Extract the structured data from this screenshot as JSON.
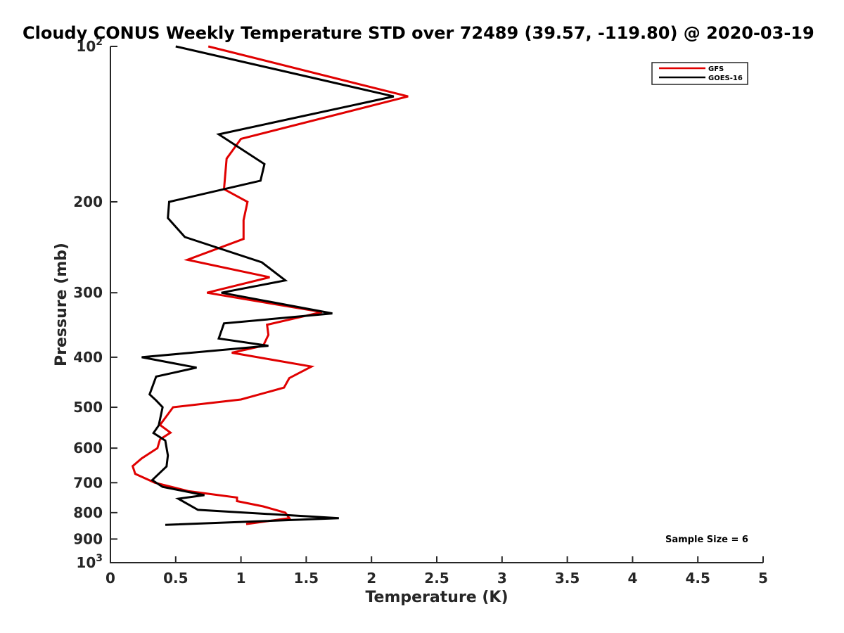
{
  "chart_data": {
    "type": "line",
    "title": "Cloudy CONUS Weekly Temperature STD over 72489 (39.57, -119.80) @ 2020-03-19",
    "xlabel": "Temperature (K)",
    "ylabel": "Pressure (mb)",
    "xlim": [
      0,
      5
    ],
    "ylim": [
      1000,
      100
    ],
    "yscale": "log",
    "y_reversed": true,
    "grid": false,
    "legend_position": "top-right",
    "x_ticks": [
      "0",
      "0.5",
      "1",
      "1.5",
      "2",
      "2.5",
      "3",
      "3.5",
      "4",
      "4.5",
      "5"
    ],
    "x_tick_values": [
      0,
      0.5,
      1,
      1.5,
      2,
      2.5,
      3,
      3.5,
      4,
      4.5,
      5
    ],
    "y_tick_values": [
      100,
      200,
      300,
      400,
      500,
      600,
      700,
      800,
      900,
      1000
    ],
    "y_ticks": [
      {
        "base": "10",
        "exp": "2"
      },
      {
        "text": "200"
      },
      {
        "text": "300"
      },
      {
        "text": "400"
      },
      {
        "text": "500"
      },
      {
        "text": "600"
      },
      {
        "text": "700"
      },
      {
        "text": "800"
      },
      {
        "text": "900"
      },
      {
        "base": "10",
        "exp": "3"
      }
    ],
    "annotation": "Sample Size = 6",
    "series": [
      {
        "name": "GFS",
        "color": "#e00000",
        "points": [
          [
            0.75,
            100
          ],
          [
            2.28,
            125
          ],
          [
            1.0,
            151
          ],
          [
            0.89,
            165
          ],
          [
            0.87,
            189
          ],
          [
            1.05,
            200
          ],
          [
            1.02,
            217
          ],
          [
            1.02,
            236
          ],
          [
            0.59,
            259
          ],
          [
            1.22,
            280
          ],
          [
            0.74,
            300
          ],
          [
            1.62,
            327
          ],
          [
            1.2,
            346
          ],
          [
            1.21,
            362
          ],
          [
            1.17,
            380
          ],
          [
            0.93,
            392
          ],
          [
            1.54,
            417
          ],
          [
            1.37,
            439
          ],
          [
            1.33,
            458
          ],
          [
            1.0,
            483
          ],
          [
            0.48,
            500
          ],
          [
            0.38,
            541
          ],
          [
            0.46,
            560
          ],
          [
            0.38,
            577
          ],
          [
            0.36,
            600
          ],
          [
            0.24,
            628
          ],
          [
            0.17,
            650
          ],
          [
            0.19,
            673
          ],
          [
            0.34,
            700
          ],
          [
            0.6,
            727
          ],
          [
            0.97,
            748
          ],
          [
            0.97,
            760
          ],
          [
            1.17,
            778
          ],
          [
            1.34,
            800
          ],
          [
            1.37,
            820
          ],
          [
            1.04,
            842
          ]
        ]
      },
      {
        "name": "GOES-16",
        "color": "#000000",
        "points": [
          [
            0.5,
            100
          ],
          [
            2.17,
            125
          ],
          [
            0.83,
            148
          ],
          [
            1.18,
            169
          ],
          [
            1.15,
            182
          ],
          [
            0.45,
            200
          ],
          [
            0.44,
            215
          ],
          [
            0.57,
            234
          ],
          [
            1.16,
            262
          ],
          [
            1.34,
            284
          ],
          [
            0.85,
            300
          ],
          [
            1.7,
            329
          ],
          [
            0.87,
            344
          ],
          [
            0.83,
            368
          ],
          [
            1.21,
            380
          ],
          [
            0.24,
            400
          ],
          [
            0.66,
            419
          ],
          [
            0.35,
            436
          ],
          [
            0.3,
            472
          ],
          [
            0.35,
            485
          ],
          [
            0.4,
            500
          ],
          [
            0.37,
            542
          ],
          [
            0.33,
            561
          ],
          [
            0.42,
            580
          ],
          [
            0.44,
            620
          ],
          [
            0.43,
            651
          ],
          [
            0.32,
            692
          ],
          [
            0.4,
            713
          ],
          [
            0.72,
            740
          ],
          [
            0.52,
            752
          ],
          [
            0.67,
            790
          ],
          [
            1.75,
            820
          ],
          [
            0.42,
            845
          ]
        ]
      }
    ]
  }
}
